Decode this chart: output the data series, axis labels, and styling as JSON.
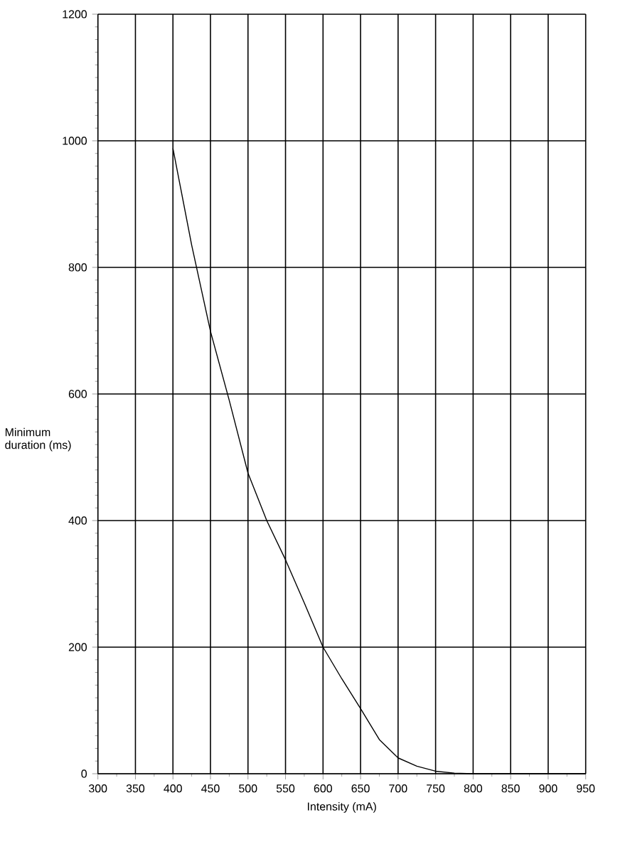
{
  "chart_data": {
    "type": "line",
    "xlabel": "Intensity (mA)",
    "ylabel": "Minimum duration (ms)",
    "x": [
      400,
      425,
      450,
      475,
      500,
      525,
      550,
      575,
      600,
      625,
      650,
      675,
      700,
      725,
      750,
      775,
      800,
      850,
      900,
      950
    ],
    "series": [
      {
        "color": "#000000",
        "values": [
          988,
          835,
          699,
          590,
          475,
          400,
          338,
          270,
          200,
          150,
          103,
          54,
          25,
          12,
          4,
          1,
          0,
          0,
          0,
          0
        ]
      }
    ],
    "xlim": [
      300,
      950
    ],
    "ylim": [
      0,
      1200
    ],
    "xticks": [
      300,
      350,
      400,
      450,
      500,
      550,
      600,
      650,
      700,
      750,
      800,
      850,
      900,
      950
    ],
    "yticks": [
      0,
      200,
      400,
      600,
      800,
      1000,
      1200
    ],
    "grid": true,
    "marker": "none",
    "line_style": "solid"
  }
}
